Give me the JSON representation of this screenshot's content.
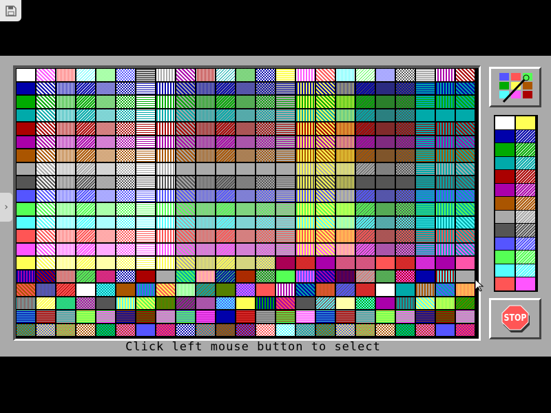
{
  "toolbar": {
    "save_icon": "floppy-disk-icon"
  },
  "side_tab": {
    "icon": "chevron-right-icon",
    "glyph": "›"
  },
  "status_text": "Click left mouse button to select",
  "stop_button": {
    "label": "STOP",
    "icon": "stop-sign-icon"
  },
  "palette_button": {
    "icon": "palette-brush-icon"
  },
  "colors": {
    "panel": "#aaaaaa",
    "ega": [
      "#000000",
      "#0000aa",
      "#00aa00",
      "#00aaaa",
      "#aa0000",
      "#aa00aa",
      "#aa5500",
      "#aaaaaa",
      "#555555",
      "#5555ff",
      "#55ff55",
      "#55ffff",
      "#ff5555",
      "#ff55ff",
      "#ffff55",
      "#ffffff"
    ]
  },
  "swatch_panel": {
    "left": [
      "#ffffff",
      "#0000aa",
      "#00aa00",
      "#00aaaa",
      "#aa0000",
      "#aa00aa",
      "#aa5500",
      "#aaaaaa",
      "#555555",
      "#5555ff",
      "#55ff55",
      "#55ffff",
      "#ff5555"
    ],
    "right": [
      "#ffff55",
      "#0000aa",
      "#00aa00",
      "#00aaaa",
      "#aa0000",
      "#aa00aa",
      "#aa5500",
      "#aaaaaa",
      "#555555",
      "#5555ff",
      "#55ff55",
      "#55ffff",
      "#ff55ff"
    ]
  }
}
